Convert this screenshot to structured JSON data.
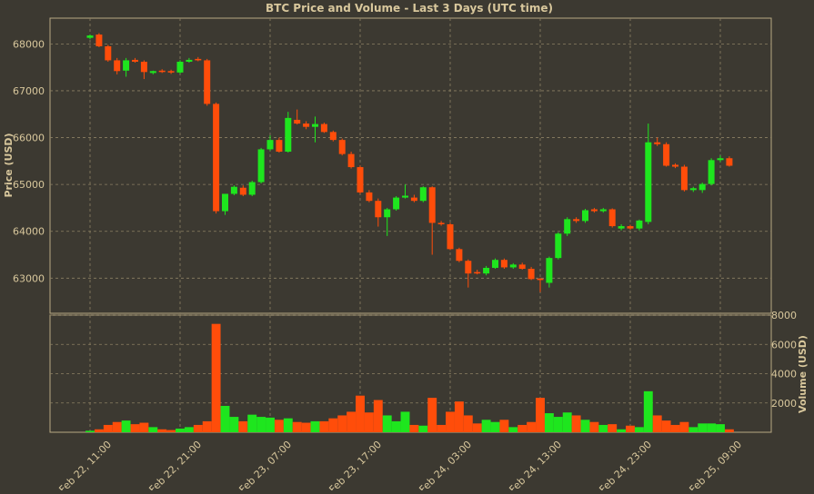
{
  "chart_data": [
    {
      "type": "candlestick",
      "title": "BTC Price and Volume - Last 3 Days (UTC time)",
      "ylabel": "Price (USD)",
      "categories": [
        "Feb 22, 11:00",
        null,
        null,
        null,
        null,
        null,
        null,
        null,
        null,
        null,
        "Feb 22, 21:00",
        null,
        null,
        null,
        null,
        null,
        null,
        null,
        null,
        null,
        "Feb 23, 07:00",
        null,
        null,
        null,
        null,
        null,
        null,
        null,
        null,
        null,
        "Feb 23, 17:00",
        null,
        null,
        null,
        null,
        null,
        null,
        null,
        null,
        null,
        "Feb 24, 03:00",
        null,
        null,
        null,
        null,
        null,
        null,
        null,
        null,
        null,
        "Feb 24, 13:00",
        null,
        null,
        null,
        null,
        null,
        null,
        null,
        null,
        null,
        "Feb 24, 23:00",
        null,
        null,
        null,
        null,
        null,
        null,
        null,
        null,
        null,
        "Feb 25, 09:00",
        null
      ],
      "open": [
        68130,
        68200,
        67950,
        67650,
        67430,
        67660,
        67620,
        67380,
        67430,
        67420,
        67390,
        67620,
        67680,
        67650,
        66720,
        64430,
        64800,
        64930,
        64780,
        65050,
        65750,
        65950,
        65700,
        66380,
        66300,
        66230,
        66290,
        66120,
        65950,
        65650,
        65370,
        64830,
        64650,
        64300,
        64470,
        64720,
        64720,
        64650,
        64940,
        64180,
        64150,
        63620,
        63370,
        63130,
        63100,
        63220,
        63390,
        63230,
        63290,
        63200,
        62990,
        62900,
        63430,
        63950,
        64260,
        64220,
        64470,
        64430,
        64470,
        64060,
        64110,
        64060,
        64200,
        65900,
        65860,
        65420,
        65380,
        64880,
        64880,
        65010,
        65520,
        65560
      ],
      "high": [
        68200,
        68230,
        67980,
        67700,
        67700,
        67700,
        67650,
        67430,
        67460,
        67450,
        67650,
        67700,
        67720,
        67680,
        66750,
        64800,
        64980,
        64980,
        65080,
        65780,
        66050,
        66000,
        66550,
        66600,
        66350,
        66450,
        66320,
        66150,
        65980,
        65700,
        65400,
        64880,
        64700,
        64500,
        64750,
        65000,
        64780,
        64960,
        64960,
        64220,
        64180,
        63650,
        63400,
        63180,
        63260,
        63420,
        63420,
        63320,
        63330,
        63240,
        63010,
        63460,
        63980,
        64300,
        64300,
        64480,
        64500,
        64500,
        64490,
        64150,
        64140,
        64250,
        66300,
        66000,
        65900,
        65450,
        65420,
        64950,
        65040,
        65560,
        65620,
        65600
      ],
      "low": [
        68100,
        67930,
        67620,
        67350,
        67300,
        67600,
        67250,
        67350,
        67380,
        67360,
        67360,
        67600,
        67630,
        66680,
        64380,
        64350,
        64770,
        64750,
        64750,
        65020,
        65720,
        65680,
        65680,
        66280,
        66180,
        65900,
        66100,
        65920,
        65620,
        65340,
        64800,
        64620,
        64100,
        63900,
        64440,
        64700,
        64620,
        64620,
        63500,
        64120,
        63600,
        63340,
        62800,
        63080,
        63060,
        63200,
        63200,
        63200,
        63180,
        62960,
        62700,
        62800,
        63400,
        63900,
        64180,
        64180,
        64400,
        64400,
        64080,
        64020,
        64030,
        64020,
        64150,
        65820,
        65380,
        65350,
        64850,
        64840,
        64820,
        64980,
        65480,
        65380
      ],
      "close": [
        68180,
        67950,
        67650,
        67420,
        67650,
        67620,
        67400,
        67420,
        67400,
        67390,
        67620,
        67660,
        67650,
        66720,
        64430,
        64800,
        64950,
        64780,
        65050,
        65750,
        65950,
        65700,
        66420,
        66300,
        66230,
        66290,
        66120,
        65950,
        65650,
        65370,
        64830,
        64650,
        64300,
        64470,
        64720,
        64760,
        64650,
        64940,
        64180,
        64150,
        63620,
        63370,
        63100,
        63100,
        63220,
        63390,
        63230,
        63290,
        63200,
        62980,
        62960,
        63430,
        63950,
        64260,
        64220,
        64450,
        64430,
        64470,
        64110,
        64110,
        64060,
        64230,
        65900,
        65860,
        65400,
        65380,
        64880,
        64920,
        65010,
        65520,
        65560,
        65400
      ],
      "up_color": "#1ee61e",
      "down_color": "#ff4d0a",
      "ylim": [
        62250,
        68550
      ],
      "yticks": [
        63000,
        64000,
        65000,
        66000,
        67000,
        68000
      ],
      "grid": true
    },
    {
      "type": "bar",
      "ylabel": "Volume (USD)",
      "values": [
        100,
        200,
        500,
        700,
        800,
        550,
        650,
        350,
        200,
        150,
        250,
        350,
        500,
        750,
        7400,
        1800,
        1050,
        750,
        1200,
        1050,
        1000,
        850,
        950,
        700,
        650,
        750,
        750,
        950,
        1150,
        1400,
        2500,
        1350,
        2200,
        1150,
        750,
        1400,
        500,
        450,
        2350,
        500,
        1400,
        2100,
        1150,
        600,
        850,
        700,
        850,
        350,
        500,
        700,
        2350,
        1300,
        1050,
        1350,
        1150,
        850,
        700,
        500,
        550,
        200,
        450,
        350,
        2800,
        1150,
        800,
        500,
        700,
        350,
        600,
        600,
        550,
        200
      ],
      "ylim": [
        0,
        8000
      ],
      "yticks": [
        2000,
        4000,
        6000,
        8000
      ],
      "grid": true
    }
  ]
}
